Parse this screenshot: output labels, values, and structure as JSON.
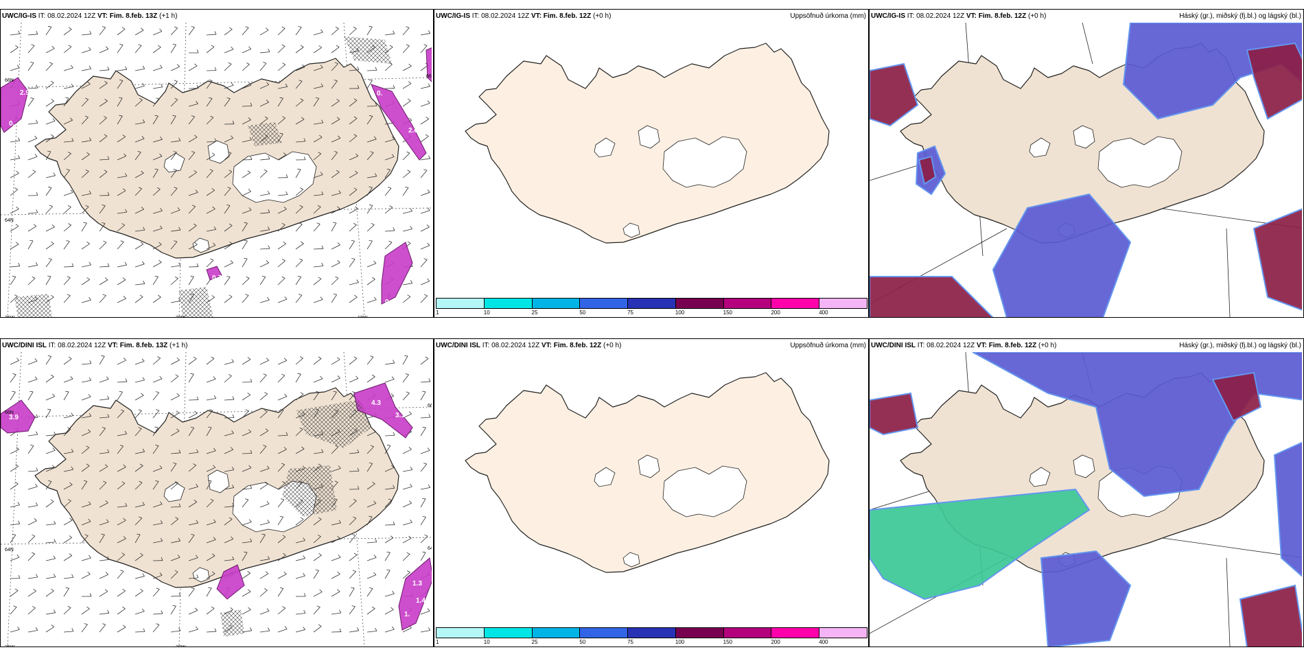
{
  "panels": [
    {
      "model": "UWC/IG-IS",
      "it_label": "IT:",
      "it_value": "08.02.2024 12Z",
      "vt_label": "VT:",
      "vt_value": "Fim. 8.feb. 13Z",
      "lead": "(+1 h)",
      "right_title": "",
      "map_type": "wind-barbs-precip",
      "coord_labels": [
        "66N",
        "64N",
        "25W",
        "20W",
        "18W",
        "66N"
      ]
    },
    {
      "model": "UWC/IG-IS",
      "it_label": "IT:",
      "it_value": "08.02.2024 12Z",
      "vt_label": "VT:",
      "vt_value": "Fim. 8.feb. 12Z",
      "lead": "(+0 h)",
      "right_title": "Uppsöfnuð úrkoma (mm)",
      "map_type": "accumulated-precip"
    },
    {
      "model": "UWC/IG-IS",
      "it_label": "IT:",
      "it_value": "08.02.2024 12Z",
      "vt_label": "VT:",
      "vt_value": "Fim. 8.feb. 12Z",
      "lead": "(+0 h)",
      "right_title": "Háský (gr.), miðský (fj.bl.) og lágský (bl.)",
      "map_type": "clouds"
    },
    {
      "model": "UWC/DINI ISL",
      "it_label": "IT:",
      "it_value": "08.02.2024 12Z",
      "vt_label": "VT:",
      "vt_value": "Fim. 8.feb. 13Z",
      "lead": "(+1 h)",
      "right_title": "",
      "map_type": "wind-barbs-precip",
      "coord_labels": [
        "66N",
        "64N",
        "25W",
        "20W",
        "66N",
        "64N"
      ]
    },
    {
      "model": "UWC/DINI ISL",
      "it_label": "IT:",
      "it_value": "08.02.2024 12Z",
      "vt_label": "VT:",
      "vt_value": "Fim. 8.feb. 12Z",
      "lead": "(+0 h)",
      "right_title": "Uppsöfnuð úrkoma (mm)",
      "map_type": "accumulated-precip"
    },
    {
      "model": "UWC/DINI ISL",
      "it_label": "IT:",
      "it_value": "08.02.2024 12Z",
      "vt_label": "VT:",
      "vt_value": "Fim. 8.feb. 12Z",
      "lead": "(+0 h)",
      "right_title": "Háský (gr.), miðský (fj.bl.) og lágský (bl.)",
      "map_type": "clouds"
    }
  ],
  "precip_labels_top": [
    "2.9",
    "0.",
    "2.6",
    "0.",
    "0.7",
    "0."
  ],
  "precip_labels_bottom": [
    "3.9",
    "4.3",
    "3.1",
    "1.3",
    "1.4",
    "1."
  ],
  "legend": {
    "ticks": [
      "1",
      "10",
      "25",
      "50",
      "75",
      "100",
      "150",
      "200",
      "400"
    ],
    "colors": [
      "#b4f7f7",
      "#00e6e6",
      "#00b4e6",
      "#3264e6",
      "#2832b4",
      "#780050",
      "#b4007d",
      "#ff00aa",
      "#f5b4f5"
    ]
  },
  "colors": {
    "land": "#f0e2d2",
    "land_precip_panel": "#fdf0e2",
    "precip_magenta": "#c83cc8",
    "cloud_high_grey": "#d6d6e0",
    "cloud_mid_blue": "#5a5ad2",
    "cloud_low_blue": "#6496f0",
    "cloud_dark": "#8c1e46",
    "cloud_green": "#3cc896"
  }
}
